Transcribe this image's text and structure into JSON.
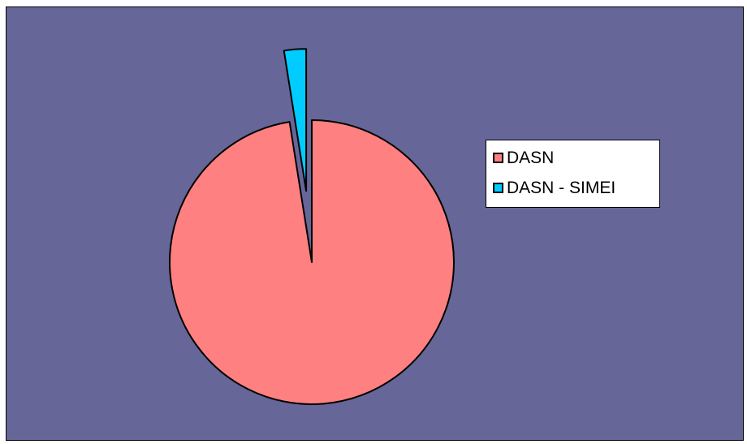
{
  "chart_data": {
    "type": "pie",
    "slices": [
      {
        "label": "DASN",
        "value": 97.5,
        "color": "#ff8080"
      },
      {
        "label": "DASN - SIMEI",
        "value": 2.5,
        "color": "#00ccff",
        "exploded": true
      }
    ],
    "legend_position": "right",
    "background_color": "#666699"
  }
}
